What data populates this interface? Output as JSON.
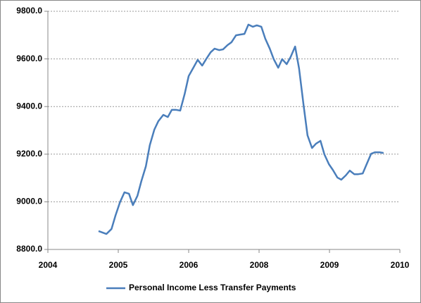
{
  "chart_data": {
    "type": "line",
    "x": [
      2004.9,
      2005.04,
      2005.13,
      2005.2,
      2005.28,
      2005.36,
      2005.44,
      2005.51,
      2005.59,
      2005.66,
      2005.74,
      2005.81,
      2005.89,
      2005.96,
      2006.05,
      2006.13,
      2006.2,
      2006.28,
      2006.35,
      2006.43,
      2006.5,
      2006.59,
      2006.66,
      2006.74,
      2006.81,
      2006.89,
      2006.96,
      2007.04,
      2007.11,
      2007.19,
      2007.26,
      2007.34,
      2007.41,
      2007.49,
      2007.56,
      2007.64,
      2007.71,
      2007.79,
      2007.86,
      2007.94,
      2008.01,
      2008.09,
      2008.16,
      2008.24,
      2008.31,
      2008.39,
      2008.46,
      2008.54,
      2008.61,
      2008.69,
      2008.76,
      2008.84,
      2008.91,
      2008.99,
      2009.06,
      2009.14,
      2009.21,
      2009.29,
      2009.36,
      2009.44,
      2009.51,
      2009.59,
      2009.66,
      2009.74,
      2009.81,
      2009.89,
      2009.96
    ],
    "series": [
      {
        "name": "Personal Income Less Transfer Payments",
        "color": "#4a7ebb",
        "values": [
          8877,
          8865,
          8886,
          8942,
          8998,
          9040,
          9034,
          8986,
          9025,
          9087,
          9149,
          9238,
          9303,
          9338,
          9365,
          9356,
          9386,
          9386,
          9383,
          9454,
          9528,
          9566,
          9596,
          9572,
          9599,
          9628,
          9643,
          9637,
          9640,
          9658,
          9670,
          9699,
          9702,
          9705,
          9744,
          9735,
          9741,
          9735,
          9685,
          9643,
          9599,
          9563,
          9599,
          9578,
          9608,
          9652,
          9560,
          9406,
          9279,
          9226,
          9244,
          9256,
          9199,
          9158,
          9134,
          9102,
          9093,
          9111,
          9131,
          9116,
          9116,
          9119,
          9158,
          9202,
          9208,
          9208,
          9205
        ]
      }
    ],
    "xlim": [
      2004,
      2010.25
    ],
    "xticks": [
      2004,
      {
        "value": 2005.25,
        "label": "2005"
      },
      {
        "value": 2006.5,
        "label": "2006"
      },
      {
        "value": 2007.75,
        "label": "2008"
      },
      2009,
      {
        "value": 2010.25,
        "label": "2010"
      }
    ],
    "ylim": [
      8800,
      9800
    ],
    "yticks": [
      {
        "value": 8800,
        "label": "8800.0"
      },
      {
        "value": 9000,
        "label": "9000.0"
      },
      {
        "value": 9200,
        "label": "9200.0"
      },
      {
        "value": 9400,
        "label": "9400.0"
      },
      {
        "value": 9600,
        "label": "9600.0"
      },
      {
        "value": 9800,
        "label": "9800.0"
      }
    ],
    "grid": true,
    "legend": "bottom"
  }
}
